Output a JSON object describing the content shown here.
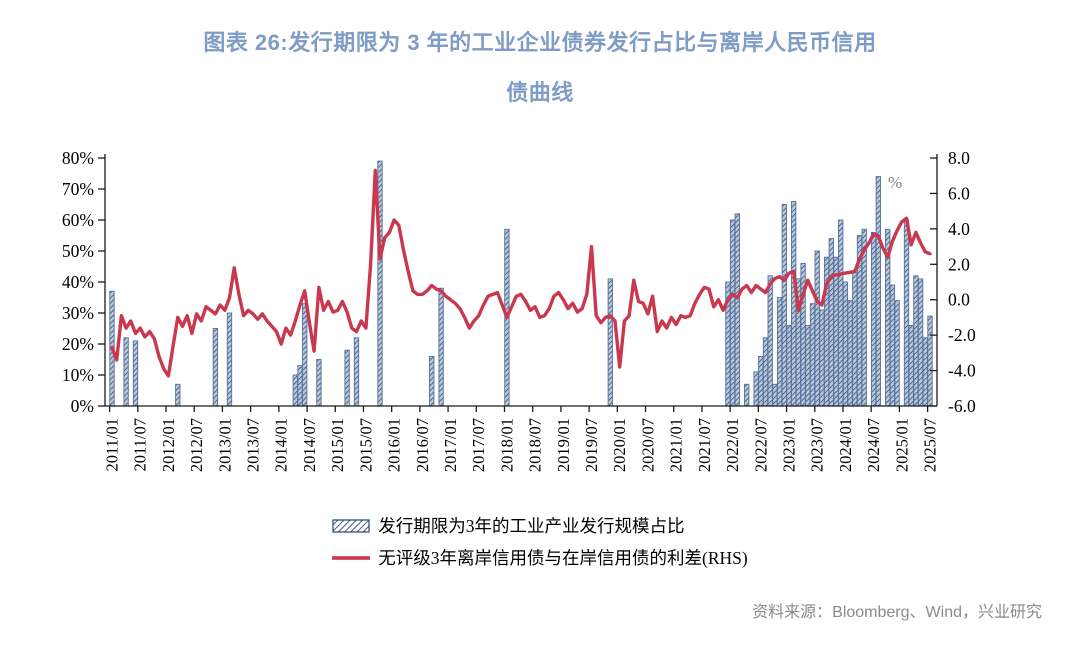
{
  "title": {
    "line1": "图表 26:发行期限为 3 年的工业企业债券发行占比与离岸人民币信用",
    "line2": "债曲线"
  },
  "source": "资料来源：Bloomberg、Wind，兴业研究",
  "colors": {
    "title_text": "#7e9cc5",
    "bar_fill": "#bac7d9",
    "bar_hatch": "#26436f",
    "bar_border": "#51709f",
    "line": "#c9384e",
    "axis": "#1a1a1a",
    "annotation_gray": "#7f7f7f",
    "source_text": "#8a8a8a"
  },
  "chart_data": {
    "type": "bar+line",
    "x_start": "2011/01",
    "x_end": "2025/07",
    "months_count": 175,
    "x_tick_labels": [
      "2011/01",
      "2011/07",
      "2012/01",
      "2012/07",
      "2013/01",
      "2013/07",
      "2014/01",
      "2014/07",
      "2015/01",
      "2015/07",
      "2016/01",
      "2016/07",
      "2017/01",
      "2017/07",
      "2018/01",
      "2018/07",
      "2019/01",
      "2019/07",
      "2020/01",
      "2020/07",
      "2021/01",
      "2021/07",
      "2022/01",
      "2022/07",
      "2023/01",
      "2023/07",
      "2024/01",
      "2024/07",
      "2025/01",
      "2025/07"
    ],
    "left_axis": {
      "min": 0,
      "max": 80,
      "ticks": [
        "0%",
        "10%",
        "20%",
        "30%",
        "40%",
        "50%",
        "60%",
        "70%",
        "80%"
      ]
    },
    "right_axis": {
      "min": -6,
      "max": 8,
      "ticks": [
        "-6.0",
        "-4.0",
        "-2.0",
        "0.0",
        "2.0",
        "4.0",
        "6.0",
        "8.0"
      ],
      "annotation": "%"
    },
    "grid": false,
    "legend_position": "bottom",
    "series": [
      {
        "name": "发行期限为3年的工业产业发行规模占比",
        "type": "bar",
        "axis": "left",
        "unit": "%",
        "points": {
          "2011/01": 37,
          "2011/04": 22,
          "2011/06": 21,
          "2012/03": 7,
          "2012/11": 25,
          "2013/02": 30,
          "2014/04": 10,
          "2014/05": 13,
          "2014/06": 33,
          "2014/09": 15,
          "2015/03": 18,
          "2015/05": 22,
          "2015/10": 79,
          "2016/09": 16,
          "2016/11": 38,
          "2018/01": 57,
          "2019/11": 41,
          "2021/12": 40,
          "2022/01": 60,
          "2022/02": 62,
          "2022/04": 7,
          "2022/06": 11,
          "2022/07": 16,
          "2022/08": 22,
          "2022/09": 42,
          "2022/10": 7,
          "2022/11": 35,
          "2022/12": 65,
          "2023/01": 26,
          "2023/02": 66,
          "2023/03": 41,
          "2023/04": 46,
          "2023/05": 26,
          "2023/06": 33,
          "2023/07": 50,
          "2023/08": 31,
          "2023/09": 48,
          "2023/10": 54,
          "2023/11": 48,
          "2023/12": 60,
          "2024/01": 40,
          "2024/02": 34,
          "2024/03": 43,
          "2024/04": 55,
          "2024/05": 57,
          "2024/07": 56,
          "2024/08": 74,
          "2024/10": 57,
          "2024/11": 39,
          "2024/12": 34,
          "2025/02": 60,
          "2025/03": 26,
          "2025/04": 42,
          "2025/05": 41,
          "2025/06": 22,
          "2025/07": 29
        }
      },
      {
        "name": "无评级3年离岸信用债与在岸信用债的利差(RHS)",
        "type": "line",
        "axis": "right",
        "monthly_values_from_2011_01": [
          -2.7,
          -3.4,
          -0.9,
          -1.6,
          -1.2,
          -1.9,
          -1.6,
          -2.1,
          -1.8,
          -2.2,
          -3.2,
          -3.9,
          -4.3,
          -2.6,
          -1.0,
          -1.5,
          -0.9,
          -1.9,
          -0.8,
          -1.2,
          -0.4,
          -0.6,
          -0.8,
          -0.3,
          -0.6,
          0.1,
          1.8,
          0.3,
          -0.9,
          -0.6,
          -0.8,
          -1.1,
          -0.8,
          -1.2,
          -1.5,
          -1.8,
          -2.5,
          -1.6,
          -2.0,
          -1.2,
          -0.3,
          0.5,
          -1.3,
          -2.9,
          0.7,
          -0.6,
          -0.1,
          -0.7,
          -0.6,
          -0.1,
          -0.7,
          -1.6,
          -1.8,
          -1.2,
          -1.6,
          2.0,
          7.3,
          2.3,
          3.5,
          3.8,
          4.5,
          4.2,
          2.8,
          1.6,
          0.5,
          0.3,
          0.3,
          0.5,
          0.8,
          0.6,
          0.5,
          0.2,
          0.0,
          -0.2,
          -0.5,
          -1.0,
          -1.6,
          -1.2,
          -0.9,
          -0.3,
          0.2,
          0.3,
          0.4,
          -0.3,
          -1.0,
          -0.4,
          0.2,
          0.3,
          -0.1,
          -0.6,
          -0.4,
          -1.0,
          -0.9,
          -0.5,
          0.2,
          0.4,
          0.0,
          -0.5,
          -0.2,
          -0.7,
          -0.5,
          0.3,
          3.0,
          -0.9,
          -1.3,
          -1.0,
          -0.9,
          -1.2,
          -3.8,
          -1.2,
          -0.9,
          1.1,
          -0.1,
          -0.2,
          -0.8,
          0.2,
          -1.8,
          -1.2,
          -1.6,
          -1.0,
          -1.4,
          -0.9,
          -1.0,
          -0.9,
          -0.2,
          0.3,
          0.7,
          0.6,
          -0.4,
          0.0,
          -0.6,
          0.0,
          0.3,
          0.1,
          0.6,
          0.8,
          0.4,
          0.8,
          0.6,
          0.4,
          0.9,
          1.2,
          1.3,
          1.1,
          1.5,
          1.6,
          -0.6,
          0.3,
          1.1,
          0.5,
          -0.1,
          -0.3,
          0.9,
          1.3,
          1.4,
          1.45,
          1.5,
          1.55,
          1.6,
          2.3,
          2.8,
          3.2,
          3.7,
          3.6,
          2.9,
          2.4,
          3.3,
          3.9,
          4.4,
          4.6,
          3.1,
          3.8,
          3.2,
          2.7,
          2.6
        ]
      }
    ]
  }
}
